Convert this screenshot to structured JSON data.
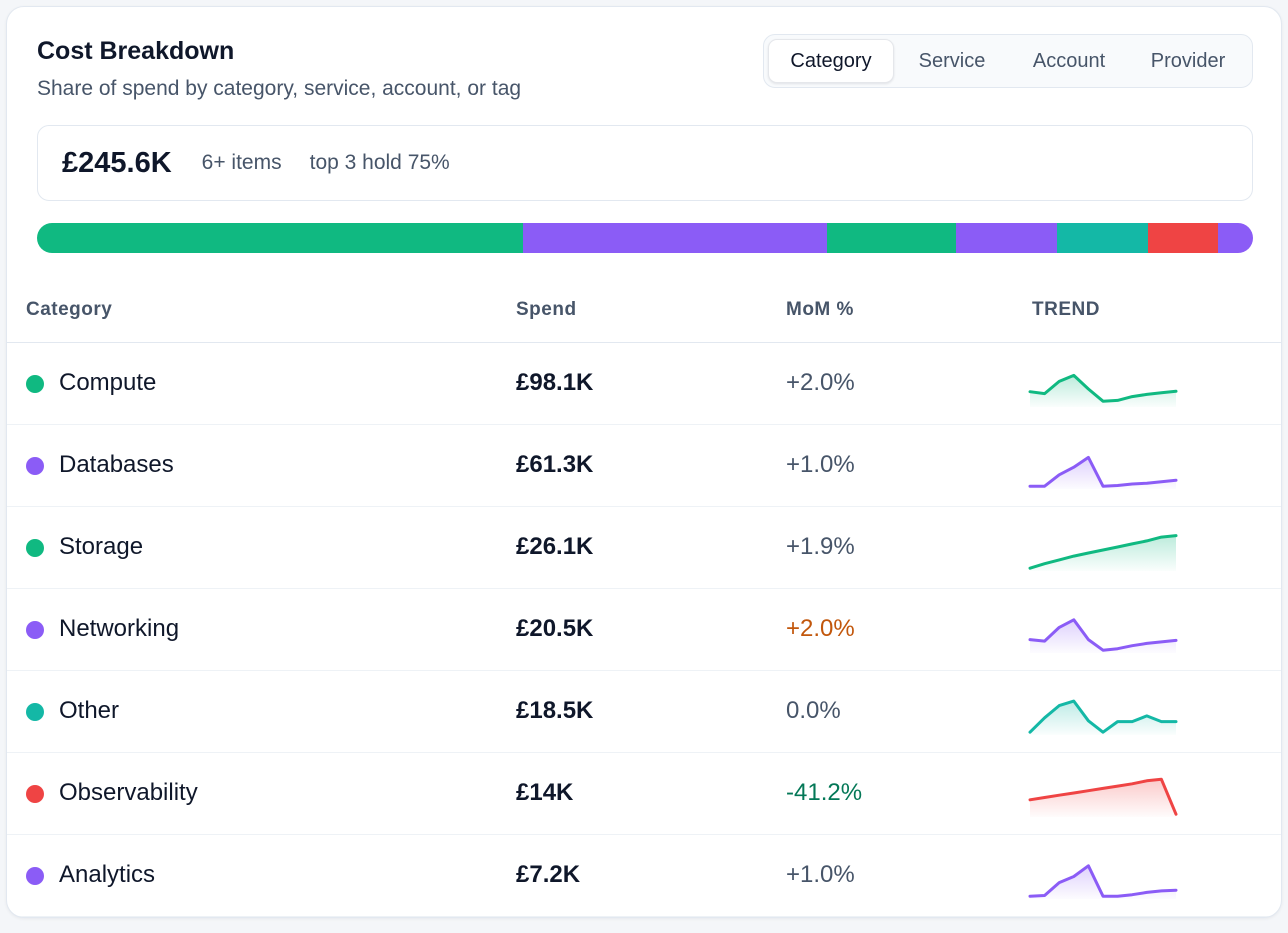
{
  "header": {
    "title": "Cost Breakdown",
    "subtitle": "Share of spend by category, service, account, or tag"
  },
  "tabs": [
    {
      "label": "Category",
      "active": true
    },
    {
      "label": "Service",
      "active": false
    },
    {
      "label": "Account",
      "active": false
    },
    {
      "label": "Provider",
      "active": false
    }
  ],
  "summary": {
    "total": "£245.6K",
    "items": "6+ items",
    "top": "top 3 hold 75%"
  },
  "colors": {
    "green": "#10b981",
    "purple": "#8b5cf6",
    "teal": "#14b8a6",
    "red": "#ef4444",
    "mom_warning": "#c2570c",
    "mom_good": "#047857",
    "mom_neutral": "#475569"
  },
  "table": {
    "headers": {
      "category": "Category",
      "spend": "Spend",
      "mom": "MoM %",
      "trend": "TREND"
    },
    "rows": [
      {
        "name": "Compute",
        "spend": "£98.1K",
        "mom": "+2.0%",
        "color": "#10b981",
        "mom_color": "#475569",
        "share": 39.9,
        "trend": [
          0.35,
          0.3,
          0.62,
          0.78,
          0.42,
          0.1,
          0.12,
          0.22,
          0.28,
          0.32,
          0.36
        ]
      },
      {
        "name": "Databases",
        "spend": "£61.3K",
        "mom": "+1.0%",
        "color": "#8b5cf6",
        "mom_color": "#475569",
        "share": 25.0,
        "trend": [
          0.02,
          0.02,
          0.32,
          0.52,
          0.78,
          0.02,
          0.04,
          0.08,
          0.1,
          0.14,
          0.18
        ]
      },
      {
        "name": "Storage",
        "spend": "£26.1K",
        "mom": "+1.9%",
        "color": "#10b981",
        "mom_color": "#475569",
        "share": 10.6,
        "trend": [
          0.02,
          0.14,
          0.24,
          0.34,
          0.42,
          0.5,
          0.58,
          0.66,
          0.74,
          0.84,
          0.88
        ]
      },
      {
        "name": "Networking",
        "spend": "£20.5K",
        "mom": "+2.0%",
        "color": "#8b5cf6",
        "mom_color": "#c2570c",
        "share": 8.3,
        "trend": [
          0.3,
          0.26,
          0.62,
          0.82,
          0.3,
          0.02,
          0.06,
          0.14,
          0.2,
          0.24,
          0.28
        ]
      },
      {
        "name": "Other",
        "spend": "£18.5K",
        "mom": "0.0%",
        "color": "#14b8a6",
        "mom_color": "#475569",
        "share": 7.5,
        "trend": [
          0.02,
          0.4,
          0.72,
          0.84,
          0.32,
          0.02,
          0.3,
          0.3,
          0.45,
          0.3,
          0.3
        ]
      },
      {
        "name": "Observability",
        "spend": "£14K",
        "mom": "-41.2%",
        "color": "#ef4444",
        "mom_color": "#047857",
        "share": 5.7,
        "trend": [
          0.4,
          0.46,
          0.52,
          0.58,
          0.64,
          0.7,
          0.76,
          0.82,
          0.9,
          0.94,
          0.02
        ]
      },
      {
        "name": "Analytics",
        "spend": "£7.2K",
        "mom": "+1.0%",
        "color": "#8b5cf6",
        "mom_color": "#475569",
        "share": 2.9,
        "trend": [
          0.02,
          0.04,
          0.38,
          0.54,
          0.82,
          0.02,
          0.02,
          0.06,
          0.12,
          0.16,
          0.18
        ]
      }
    ]
  }
}
